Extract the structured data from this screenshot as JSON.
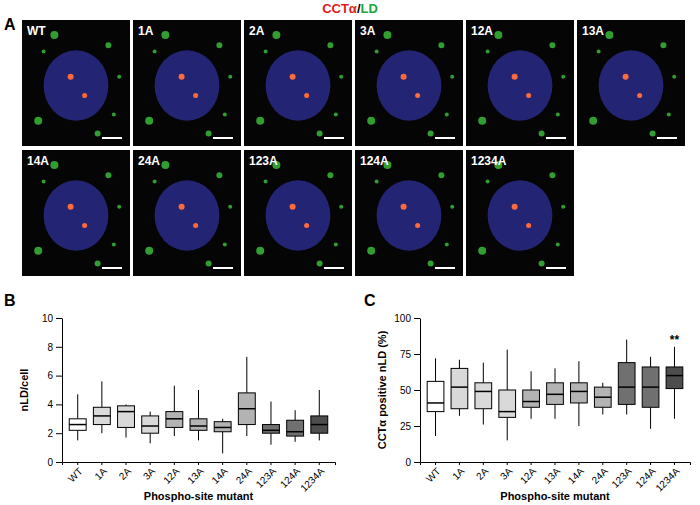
{
  "image_panels": {
    "panel_label": "A",
    "title_parts": [
      {
        "text": "CCTα",
        "color": "#e41a1c"
      },
      {
        "text": "/",
        "color": "#000000"
      },
      {
        "text": "LD",
        "color": "#22a33a"
      }
    ],
    "labels": [
      "WT",
      "1A",
      "2A",
      "3A",
      "12A",
      "13A",
      "14A",
      "24A",
      "123A",
      "124A",
      "1234A"
    ]
  },
  "chart_data": [
    {
      "type": "box",
      "panel_label": "B",
      "y_label": "nLD/cell",
      "x_label": "Phospho-site mutant",
      "categories": [
        "WT",
        "1A",
        "2A",
        "3A",
        "12A",
        "13A",
        "14A",
        "24A",
        "123A",
        "124A",
        "1234A"
      ],
      "colors": [
        "#ffffff",
        "#d9d9d9",
        "#d9d9d9",
        "#d9d9d9",
        "#b3b3b3",
        "#b3b3b3",
        "#b3b3b3",
        "#b3b3b3",
        "#707070",
        "#707070",
        "#4d4d4d"
      ],
      "boxes": [
        {
          "min": 1.5,
          "q1": 2.2,
          "median": 2.6,
          "q3": 3.0,
          "max": 4.7
        },
        {
          "min": 2.0,
          "q1": 2.6,
          "median": 3.2,
          "q3": 3.8,
          "max": 5.6
        },
        {
          "min": 1.7,
          "q1": 2.4,
          "median": 3.5,
          "q3": 3.9,
          "max": 4.0
        },
        {
          "min": 1.3,
          "q1": 2.0,
          "median": 2.5,
          "q3": 3.2,
          "max": 3.5
        },
        {
          "min": 1.8,
          "q1": 2.4,
          "median": 3.0,
          "q3": 3.5,
          "max": 5.3
        },
        {
          "min": 1.5,
          "q1": 2.2,
          "median": 2.5,
          "q3": 3.0,
          "max": 5.0
        },
        {
          "min": 0.6,
          "q1": 2.1,
          "median": 2.4,
          "q3": 2.8,
          "max": 3.0
        },
        {
          "min": 1.8,
          "q1": 2.6,
          "median": 3.7,
          "q3": 4.8,
          "max": 7.3
        },
        {
          "min": 1.2,
          "q1": 2.0,
          "median": 2.2,
          "q3": 2.6,
          "max": 4.2
        },
        {
          "min": 1.4,
          "q1": 1.8,
          "median": 2.1,
          "q3": 2.9,
          "max": 3.6
        },
        {
          "min": 1.5,
          "q1": 2.0,
          "median": 2.6,
          "q3": 3.2,
          "max": 5.0
        }
      ],
      "ylim": [
        0,
        10
      ],
      "yticks": [
        0,
        2,
        4,
        6,
        8,
        10
      ],
      "grid": false
    },
    {
      "type": "box",
      "panel_label": "C",
      "y_label": "CCTα positive nLD (%)",
      "x_label": "Phospho-site mutant",
      "categories": [
        "WT",
        "1A",
        "2A",
        "3A",
        "12A",
        "13A",
        "14A",
        "24A",
        "123A",
        "124A",
        "1234A"
      ],
      "colors": [
        "#ffffff",
        "#d9d9d9",
        "#d9d9d9",
        "#d9d9d9",
        "#b3b3b3",
        "#b3b3b3",
        "#b3b3b3",
        "#b3b3b3",
        "#707070",
        "#707070",
        "#4d4d4d"
      ],
      "boxes": [
        {
          "min": 18,
          "q1": 35,
          "median": 41,
          "q3": 56,
          "max": 72
        },
        {
          "min": 32,
          "q1": 37,
          "median": 52,
          "q3": 65,
          "max": 71
        },
        {
          "min": 26,
          "q1": 37,
          "median": 49,
          "q3": 55,
          "max": 69
        },
        {
          "min": 15,
          "q1": 31,
          "median": 35,
          "q3": 50,
          "max": 78
        },
        {
          "min": 30,
          "q1": 38,
          "median": 42,
          "q3": 50,
          "max": 63
        },
        {
          "min": 30,
          "q1": 40,
          "median": 47,
          "q3": 55,
          "max": 65
        },
        {
          "min": 25,
          "q1": 41,
          "median": 49,
          "q3": 55,
          "max": 70
        },
        {
          "min": 33,
          "q1": 38,
          "median": 45,
          "q3": 52,
          "max": 55
        },
        {
          "min": 33,
          "q1": 40,
          "median": 52,
          "q3": 69,
          "max": 85
        },
        {
          "min": 23,
          "q1": 38,
          "median": 52,
          "q3": 66,
          "max": 73
        },
        {
          "min": 30,
          "q1": 51,
          "median": 60,
          "q3": 66,
          "max": 80
        }
      ],
      "annotations": [
        {
          "category": "1234A",
          "text": "**"
        }
      ],
      "ylim": [
        0,
        100
      ],
      "yticks": [
        0,
        25,
        50,
        75,
        100
      ],
      "grid": false
    }
  ]
}
